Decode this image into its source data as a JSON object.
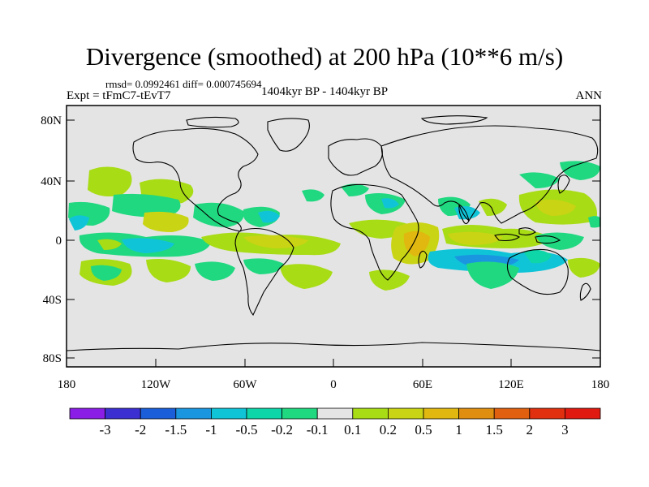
{
  "title": "Divergence (smoothed) at 200 hPa (10**6 m/s)",
  "stats": "rmsd= 0.0992461 diff= 0.000745694",
  "experiment": "Expt = tFmC7-tEvT7",
  "period": "1404kyr BP - 1404kyr BP",
  "season": "ANN",
  "lat_labels": [
    "80N",
    "40N",
    "0",
    "40S",
    "80S"
  ],
  "lon_labels": [
    "180",
    "120W",
    "60W",
    "0",
    "60E",
    "120E",
    "180"
  ],
  "colorbar": {
    "labels": [
      "-3",
      "-2",
      "-1.5",
      "-1",
      "-0.5",
      "-0.2",
      "-0.1",
      "0.1",
      "0.2",
      "0.5",
      "1",
      "1.5",
      "2",
      "3"
    ],
    "colors": [
      "#8a1ee6",
      "#3c2fd2",
      "#1a5fd9",
      "#1a96e0",
      "#10c4d8",
      "#0fd6a8",
      "#20d880",
      "#e4e4e4",
      "#a8dc14",
      "#c9d414",
      "#e0b80f",
      "#e08e0f",
      "#e0600f",
      "#e0300f",
      "#e01a10"
    ]
  },
  "chart_data": {
    "type": "contour-map",
    "variable": "Divergence (smoothed)",
    "level": "200 hPa",
    "units": "10**6 m/s",
    "lon_range": [
      -180,
      180
    ],
    "lat_range": [
      -90,
      90
    ],
    "background_value_class": "-0.1 to 0.1",
    "anomaly_regions": [
      {
        "lon": -162,
        "lat": 40,
        "class": "0.1 to 0.2"
      },
      {
        "lon": -130,
        "lat": 35,
        "class": "0.1 to 0.2"
      },
      {
        "lon": -165,
        "lat": 17,
        "class": "-0.2 to -0.1"
      },
      {
        "lon": -120,
        "lat": 13,
        "class": "0.2 to 0.5"
      },
      {
        "lon": -150,
        "lat": -2,
        "class": "-0.2 to -0.1"
      },
      {
        "lon": -95,
        "lat": -3,
        "class": "0.2 to 0.5"
      },
      {
        "lon": -55,
        "lat": 5,
        "class": "0.2 to 0.5"
      },
      {
        "lon": -25,
        "lat": 2,
        "class": "0.2 to 0.5"
      },
      {
        "lon": -110,
        "lat": -20,
        "class": "0.1 to 0.2"
      },
      {
        "lon": -155,
        "lat": -20,
        "class": "0.1 to 0.2"
      },
      {
        "lon": -40,
        "lat": -25,
        "class": "0.1 to 0.2"
      },
      {
        "lon": 20,
        "lat": 15,
        "class": "-0.2 to -0.1"
      },
      {
        "lon": 50,
        "lat": -5,
        "class": "0.2 to 0.5"
      },
      {
        "lon": 100,
        "lat": 5,
        "class": "0.2 to 0.5"
      },
      {
        "lon": 105,
        "lat": -10,
        "class": "-0.5 to -0.2"
      },
      {
        "lon": 150,
        "lat": 25,
        "class": "0.1 to 0.2"
      },
      {
        "lon": 160,
        "lat": 40,
        "class": "-0.2 to -0.1"
      },
      {
        "lon": 160,
        "lat": -15,
        "class": "0.1 to 0.2"
      },
      {
        "lon": 130,
        "lat": 5,
        "class": "-0.2 to -0.1"
      }
    ]
  }
}
